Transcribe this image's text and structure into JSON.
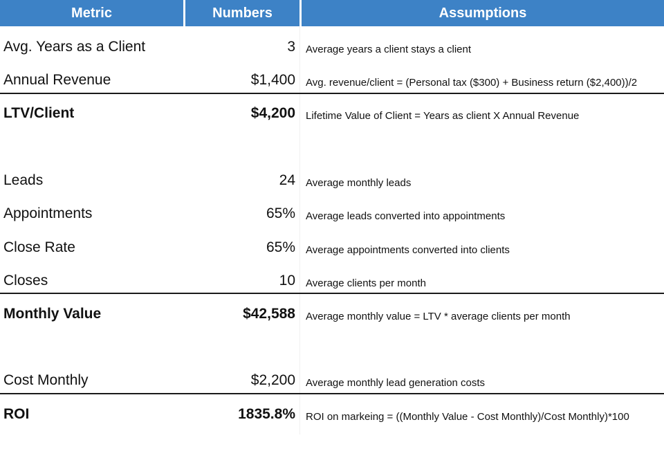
{
  "header": {
    "metric": "Metric",
    "numbers": "Numbers",
    "assumptions": "Assumptions"
  },
  "rows": [
    {
      "metric": "Avg. Years as a Client",
      "number": "3",
      "assumption": "Average years a client stays a client"
    },
    {
      "metric": "Annual Revenue",
      "number": "$1,400",
      "assumption": "Avg. revenue/client = (Personal tax ($300) + Business return ($2,400))/2"
    },
    {
      "metric": "LTV/Client",
      "number": "$4,200",
      "assumption": "Lifetime Value of Client = Years as client X Annual Revenue"
    },
    {
      "metric": "Leads",
      "number": "24",
      "assumption": "Average monthly leads"
    },
    {
      "metric": "Appointments",
      "number": "65%",
      "assumption": "Average leads converted into appointments"
    },
    {
      "metric": "Close Rate",
      "number": "65%",
      "assumption": "Average appointments converted into clients"
    },
    {
      "metric": "Closes",
      "number": "10",
      "assumption": "Average clients per month"
    },
    {
      "metric": "Monthly Value",
      "number": "$42,588",
      "assumption": "Average monthly value = LTV * average clients per month"
    },
    {
      "metric": "Cost Monthly",
      "number": "$2,200",
      "assumption": "Average monthly lead generation costs"
    },
    {
      "metric": "ROI",
      "number": "1835.8%",
      "assumption": "ROI on markeing  = ((Monthly Value - Cost Monthly)/Cost Monthly)*100"
    }
  ],
  "colors": {
    "header_background": "#3d82c6",
    "header_text": "#ffffff",
    "rule": "#1a1a1a"
  }
}
